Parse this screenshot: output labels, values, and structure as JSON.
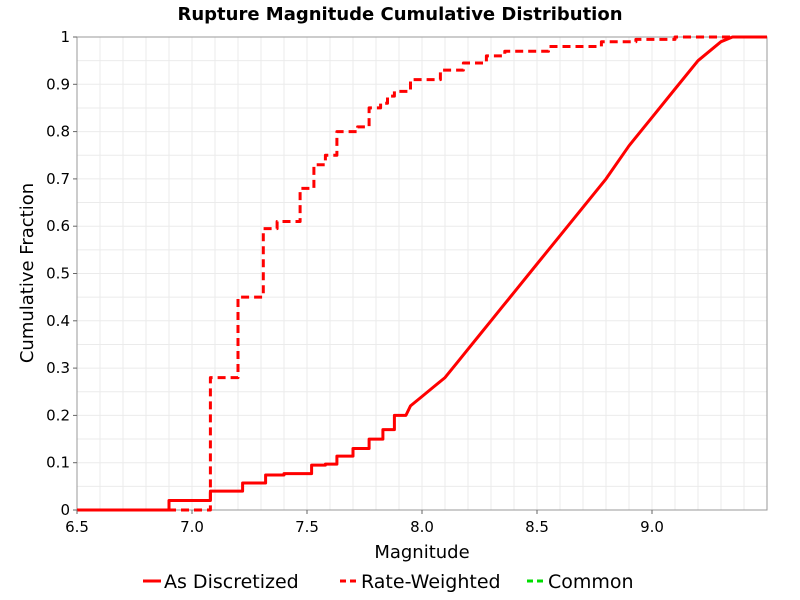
{
  "chart_data": {
    "type": "line",
    "title": "Rupture Magnitude Cumulative Distribution",
    "xlabel": "Magnitude",
    "ylabel": "Cumulative Fraction",
    "xlim": [
      6.5,
      9.5
    ],
    "ylim": [
      0,
      1
    ],
    "x_ticks": [
      6.5,
      7.0,
      7.5,
      8.0,
      8.5,
      9.0
    ],
    "x_tick_labels": [
      "6.5",
      "7.0",
      "7.5",
      "8.0",
      "8.5",
      "9.0"
    ],
    "y_ticks": [
      0,
      0.1,
      0.2,
      0.3,
      0.4,
      0.5,
      0.6,
      0.7,
      0.8,
      0.9,
      1
    ],
    "y_tick_labels": [
      "0",
      "0.1",
      "0.2",
      "0.3",
      "0.4",
      "0.5",
      "0.6",
      "0.7",
      "0.8",
      "0.9",
      "1"
    ],
    "grid": true,
    "legend_position": "bottom",
    "series": [
      {
        "name": "As Discretized",
        "color": "#ff0000",
        "style": "solid",
        "points": [
          [
            6.5,
            0.0
          ],
          [
            6.9,
            0.0
          ],
          [
            6.9,
            0.02
          ],
          [
            7.08,
            0.02
          ],
          [
            7.08,
            0.04
          ],
          [
            7.22,
            0.04
          ],
          [
            7.22,
            0.057
          ],
          [
            7.32,
            0.057
          ],
          [
            7.32,
            0.074
          ],
          [
            7.4,
            0.074
          ],
          [
            7.4,
            0.077
          ],
          [
            7.52,
            0.077
          ],
          [
            7.52,
            0.095
          ],
          [
            7.58,
            0.095
          ],
          [
            7.58,
            0.097
          ],
          [
            7.63,
            0.097
          ],
          [
            7.63,
            0.114
          ],
          [
            7.7,
            0.114
          ],
          [
            7.7,
            0.13
          ],
          [
            7.77,
            0.13
          ],
          [
            7.77,
            0.15
          ],
          [
            7.83,
            0.15
          ],
          [
            7.83,
            0.17
          ],
          [
            7.88,
            0.17
          ],
          [
            7.88,
            0.2
          ],
          [
            7.93,
            0.2
          ],
          [
            7.95,
            0.22
          ],
          [
            8.0,
            0.24
          ],
          [
            8.05,
            0.26
          ],
          [
            8.1,
            0.28
          ],
          [
            8.15,
            0.31
          ],
          [
            8.2,
            0.34
          ],
          [
            8.25,
            0.37
          ],
          [
            8.3,
            0.4
          ],
          [
            8.35,
            0.43
          ],
          [
            8.4,
            0.46
          ],
          [
            8.5,
            0.52
          ],
          [
            8.6,
            0.58
          ],
          [
            8.7,
            0.64
          ],
          [
            8.8,
            0.7
          ],
          [
            8.9,
            0.77
          ],
          [
            9.0,
            0.83
          ],
          [
            9.1,
            0.89
          ],
          [
            9.2,
            0.95
          ],
          [
            9.3,
            0.99
          ],
          [
            9.35,
            1.0
          ],
          [
            9.5,
            1.0
          ]
        ]
      },
      {
        "name": "Rate-Weighted",
        "color": "#ff0000",
        "style": "dashed",
        "points": [
          [
            6.5,
            0.0
          ],
          [
            7.08,
            0.0
          ],
          [
            7.08,
            0.28
          ],
          [
            7.2,
            0.28
          ],
          [
            7.2,
            0.45
          ],
          [
            7.31,
            0.45
          ],
          [
            7.31,
            0.595
          ],
          [
            7.37,
            0.595
          ],
          [
            7.37,
            0.61
          ],
          [
            7.47,
            0.61
          ],
          [
            7.47,
            0.68
          ],
          [
            7.53,
            0.68
          ],
          [
            7.53,
            0.73
          ],
          [
            7.58,
            0.73
          ],
          [
            7.58,
            0.75
          ],
          [
            7.63,
            0.75
          ],
          [
            7.63,
            0.8
          ],
          [
            7.72,
            0.8
          ],
          [
            7.72,
            0.81
          ],
          [
            7.77,
            0.81
          ],
          [
            7.77,
            0.85
          ],
          [
            7.82,
            0.85
          ],
          [
            7.82,
            0.86
          ],
          [
            7.85,
            0.86
          ],
          [
            7.85,
            0.875
          ],
          [
            7.88,
            0.875
          ],
          [
            7.88,
            0.885
          ],
          [
            7.95,
            0.885
          ],
          [
            7.95,
            0.91
          ],
          [
            8.08,
            0.91
          ],
          [
            8.08,
            0.93
          ],
          [
            8.18,
            0.93
          ],
          [
            8.18,
            0.945
          ],
          [
            8.28,
            0.945
          ],
          [
            8.28,
            0.96
          ],
          [
            8.36,
            0.96
          ],
          [
            8.36,
            0.97
          ],
          [
            8.55,
            0.97
          ],
          [
            8.55,
            0.98
          ],
          [
            8.78,
            0.98
          ],
          [
            8.78,
            0.99
          ],
          [
            8.93,
            0.99
          ],
          [
            8.93,
            0.995
          ],
          [
            9.1,
            0.995
          ],
          [
            9.1,
            1.0
          ],
          [
            9.5,
            1.0
          ]
        ]
      },
      {
        "name": "Common",
        "color": "#00dd00",
        "style": "dashed",
        "points": []
      }
    ]
  }
}
